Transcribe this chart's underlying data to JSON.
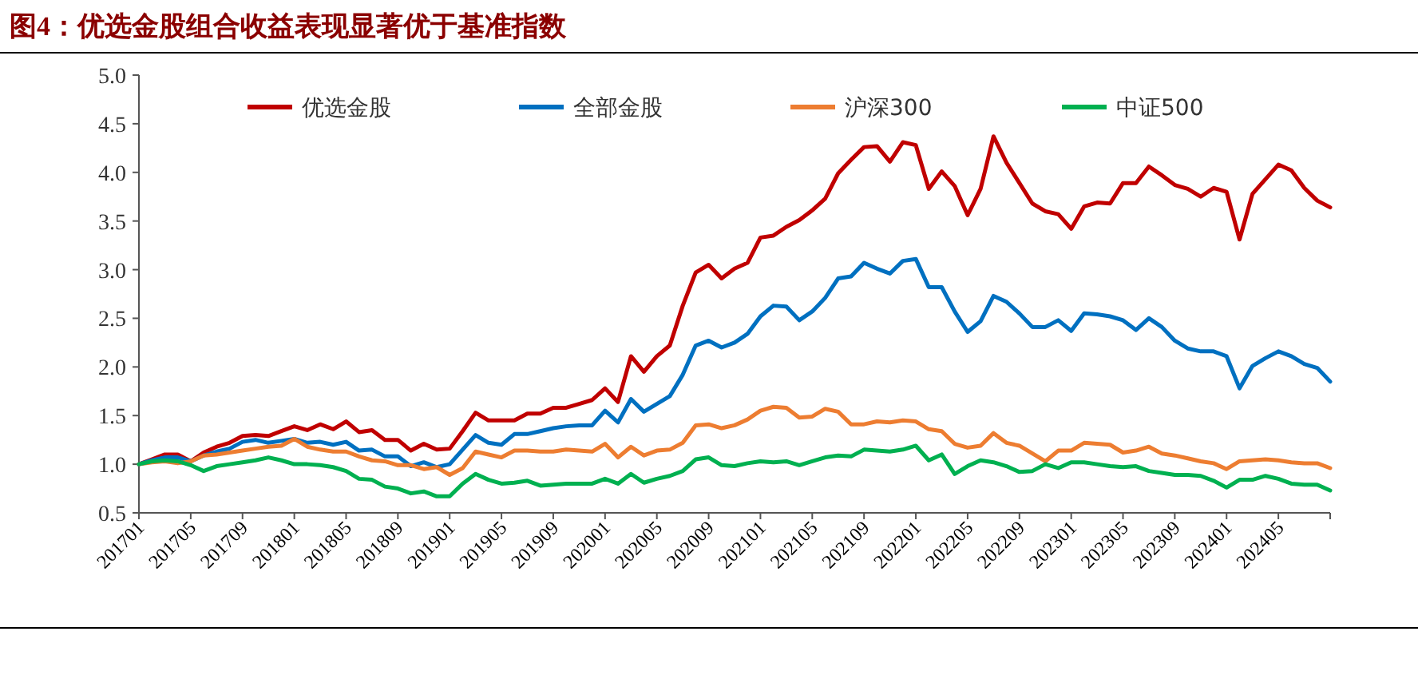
{
  "chart_data": {
    "type": "line",
    "title": "图4：优选金股组合收益表现显著优于基准指数",
    "categories": [
      "201701",
      null,
      null,
      null,
      "201705",
      null,
      null,
      null,
      "201709",
      null,
      null,
      null,
      "201801",
      null,
      null,
      null,
      "201805",
      null,
      null,
      null,
      "201809",
      null,
      null,
      null,
      "201901",
      null,
      null,
      null,
      "201905",
      null,
      null,
      null,
      "201909",
      null,
      null,
      null,
      "202001",
      null,
      null,
      null,
      "202005",
      null,
      null,
      null,
      "202009",
      null,
      null,
      null,
      "202101",
      null,
      null,
      null,
      "202105",
      null,
      null,
      null,
      "202109",
      null,
      null,
      null,
      "202201",
      null,
      null,
      null,
      "202205",
      null,
      null,
      null,
      "202209",
      null,
      null,
      null,
      "202301",
      null,
      null,
      null,
      "202305",
      null,
      null,
      null,
      "202309",
      null,
      null,
      null,
      "202401",
      null,
      null,
      null,
      "202405",
      null,
      null,
      null,
      null
    ],
    "series": [
      {
        "name": "优选金股",
        "color": "#c00000",
        "values": [
          1.0,
          1.05,
          1.1,
          1.1,
          1.03,
          1.12,
          1.18,
          1.22,
          1.29,
          1.3,
          1.29,
          1.34,
          1.39,
          1.35,
          1.41,
          1.36,
          1.44,
          1.33,
          1.35,
          1.25,
          1.25,
          1.14,
          1.21,
          1.15,
          1.16,
          1.34,
          1.53,
          1.45,
          1.45,
          1.45,
          1.52,
          1.52,
          1.58,
          1.58,
          1.62,
          1.66,
          1.78,
          1.64,
          2.11,
          1.95,
          2.11,
          2.22,
          2.63,
          2.97,
          3.05,
          2.91,
          3.01,
          3.07,
          3.33,
          3.35,
          3.44,
          3.51,
          3.61,
          3.73,
          3.99,
          4.13,
          4.26,
          4.27,
          4.11,
          4.31,
          4.28,
          3.83,
          4.01,
          3.86,
          3.56,
          3.83,
          4.37,
          4.1,
          3.89,
          3.68,
          3.6,
          3.57,
          3.42,
          3.65,
          3.69,
          3.68,
          3.89,
          3.89,
          4.06,
          3.97,
          3.87,
          3.83,
          3.75,
          3.84,
          3.8,
          3.31,
          3.78,
          3.93,
          4.08,
          4.02,
          3.84,
          3.71,
          3.64
        ]
      },
      {
        "name": "全部金股",
        "color": "#0070c0",
        "values": [
          1.0,
          1.04,
          1.07,
          1.07,
          1.03,
          1.09,
          1.13,
          1.16,
          1.23,
          1.25,
          1.22,
          1.24,
          1.26,
          1.22,
          1.23,
          1.2,
          1.23,
          1.14,
          1.15,
          1.08,
          1.08,
          0.98,
          1.02,
          0.97,
          1.0,
          1.15,
          1.3,
          1.22,
          1.2,
          1.31,
          1.31,
          1.34,
          1.37,
          1.39,
          1.4,
          1.4,
          1.55,
          1.43,
          1.67,
          1.54,
          1.62,
          1.7,
          1.92,
          2.22,
          2.27,
          2.2,
          2.25,
          2.34,
          2.52,
          2.63,
          2.62,
          2.48,
          2.57,
          2.71,
          2.91,
          2.93,
          3.07,
          3.01,
          2.96,
          3.09,
          3.11,
          2.82,
          2.82,
          2.57,
          2.36,
          2.47,
          2.73,
          2.67,
          2.55,
          2.41,
          2.41,
          2.48,
          2.37,
          2.55,
          2.54,
          2.52,
          2.48,
          2.38,
          2.5,
          2.41,
          2.27,
          2.19,
          2.16,
          2.16,
          2.11,
          1.78,
          2.01,
          2.09,
          2.16,
          2.11,
          2.03,
          1.99,
          1.85
        ]
      },
      {
        "name": "沪深300",
        "color": "#ed7d31",
        "values": [
          1.0,
          1.02,
          1.03,
          1.01,
          1.03,
          1.09,
          1.1,
          1.12,
          1.14,
          1.16,
          1.18,
          1.19,
          1.26,
          1.18,
          1.15,
          1.13,
          1.13,
          1.08,
          1.04,
          1.03,
          0.99,
          0.99,
          0.95,
          0.97,
          0.89,
          0.96,
          1.13,
          1.1,
          1.07,
          1.14,
          1.14,
          1.13,
          1.13,
          1.15,
          1.14,
          1.13,
          1.21,
          1.07,
          1.18,
          1.09,
          1.14,
          1.15,
          1.22,
          1.4,
          1.41,
          1.37,
          1.4,
          1.46,
          1.55,
          1.59,
          1.58,
          1.48,
          1.49,
          1.57,
          1.54,
          1.41,
          1.41,
          1.44,
          1.43,
          1.45,
          1.44,
          1.36,
          1.34,
          1.21,
          1.17,
          1.19,
          1.32,
          1.22,
          1.19,
          1.11,
          1.03,
          1.14,
          1.14,
          1.22,
          1.21,
          1.2,
          1.12,
          1.14,
          1.18,
          1.11,
          1.09,
          1.06,
          1.03,
          1.01,
          0.95,
          1.03,
          1.04,
          1.05,
          1.04,
          1.02,
          1.01,
          1.01,
          0.96
        ]
      },
      {
        "name": "中证500",
        "color": "#00b050",
        "values": [
          1.0,
          1.03,
          1.04,
          1.03,
          0.99,
          0.93,
          0.98,
          1.0,
          1.02,
          1.04,
          1.07,
          1.04,
          1.0,
          1.0,
          0.99,
          0.97,
          0.93,
          0.85,
          0.84,
          0.77,
          0.75,
          0.7,
          0.72,
          0.67,
          0.67,
          0.8,
          0.9,
          0.84,
          0.8,
          0.81,
          0.83,
          0.78,
          0.79,
          0.8,
          0.8,
          0.8,
          0.85,
          0.8,
          0.9,
          0.81,
          0.85,
          0.88,
          0.93,
          1.05,
          1.07,
          0.99,
          0.98,
          1.01,
          1.03,
          1.02,
          1.03,
          0.99,
          1.03,
          1.07,
          1.09,
          1.08,
          1.15,
          1.14,
          1.13,
          1.15,
          1.19,
          1.04,
          1.1,
          0.9,
          0.98,
          1.04,
          1.02,
          0.98,
          0.92,
          0.93,
          1.0,
          0.96,
          1.02,
          1.02,
          1.0,
          0.98,
          0.97,
          0.98,
          0.93,
          0.91,
          0.89,
          0.89,
          0.88,
          0.83,
          0.76,
          0.84,
          0.84,
          0.88,
          0.85,
          0.8,
          0.79,
          0.79,
          0.73
        ]
      }
    ],
    "ylim": [
      0.5,
      5.0
    ],
    "yticks": [
      {
        "value": 0.5,
        "label": "0.5"
      },
      {
        "value": 1.0,
        "label": "1.0"
      },
      {
        "value": 1.5,
        "label": "1.5"
      },
      {
        "value": 2.0,
        "label": "2.0"
      },
      {
        "value": 2.5,
        "label": "2.5"
      },
      {
        "value": 3.0,
        "label": "3.0"
      },
      {
        "value": 3.5,
        "label": "3.5"
      },
      {
        "value": 4.0,
        "label": "4.0"
      },
      {
        "value": 4.5,
        "label": "4.5"
      },
      {
        "value": 5.0,
        "label": "5.0"
      }
    ],
    "legend": "top",
    "grid": false
  }
}
